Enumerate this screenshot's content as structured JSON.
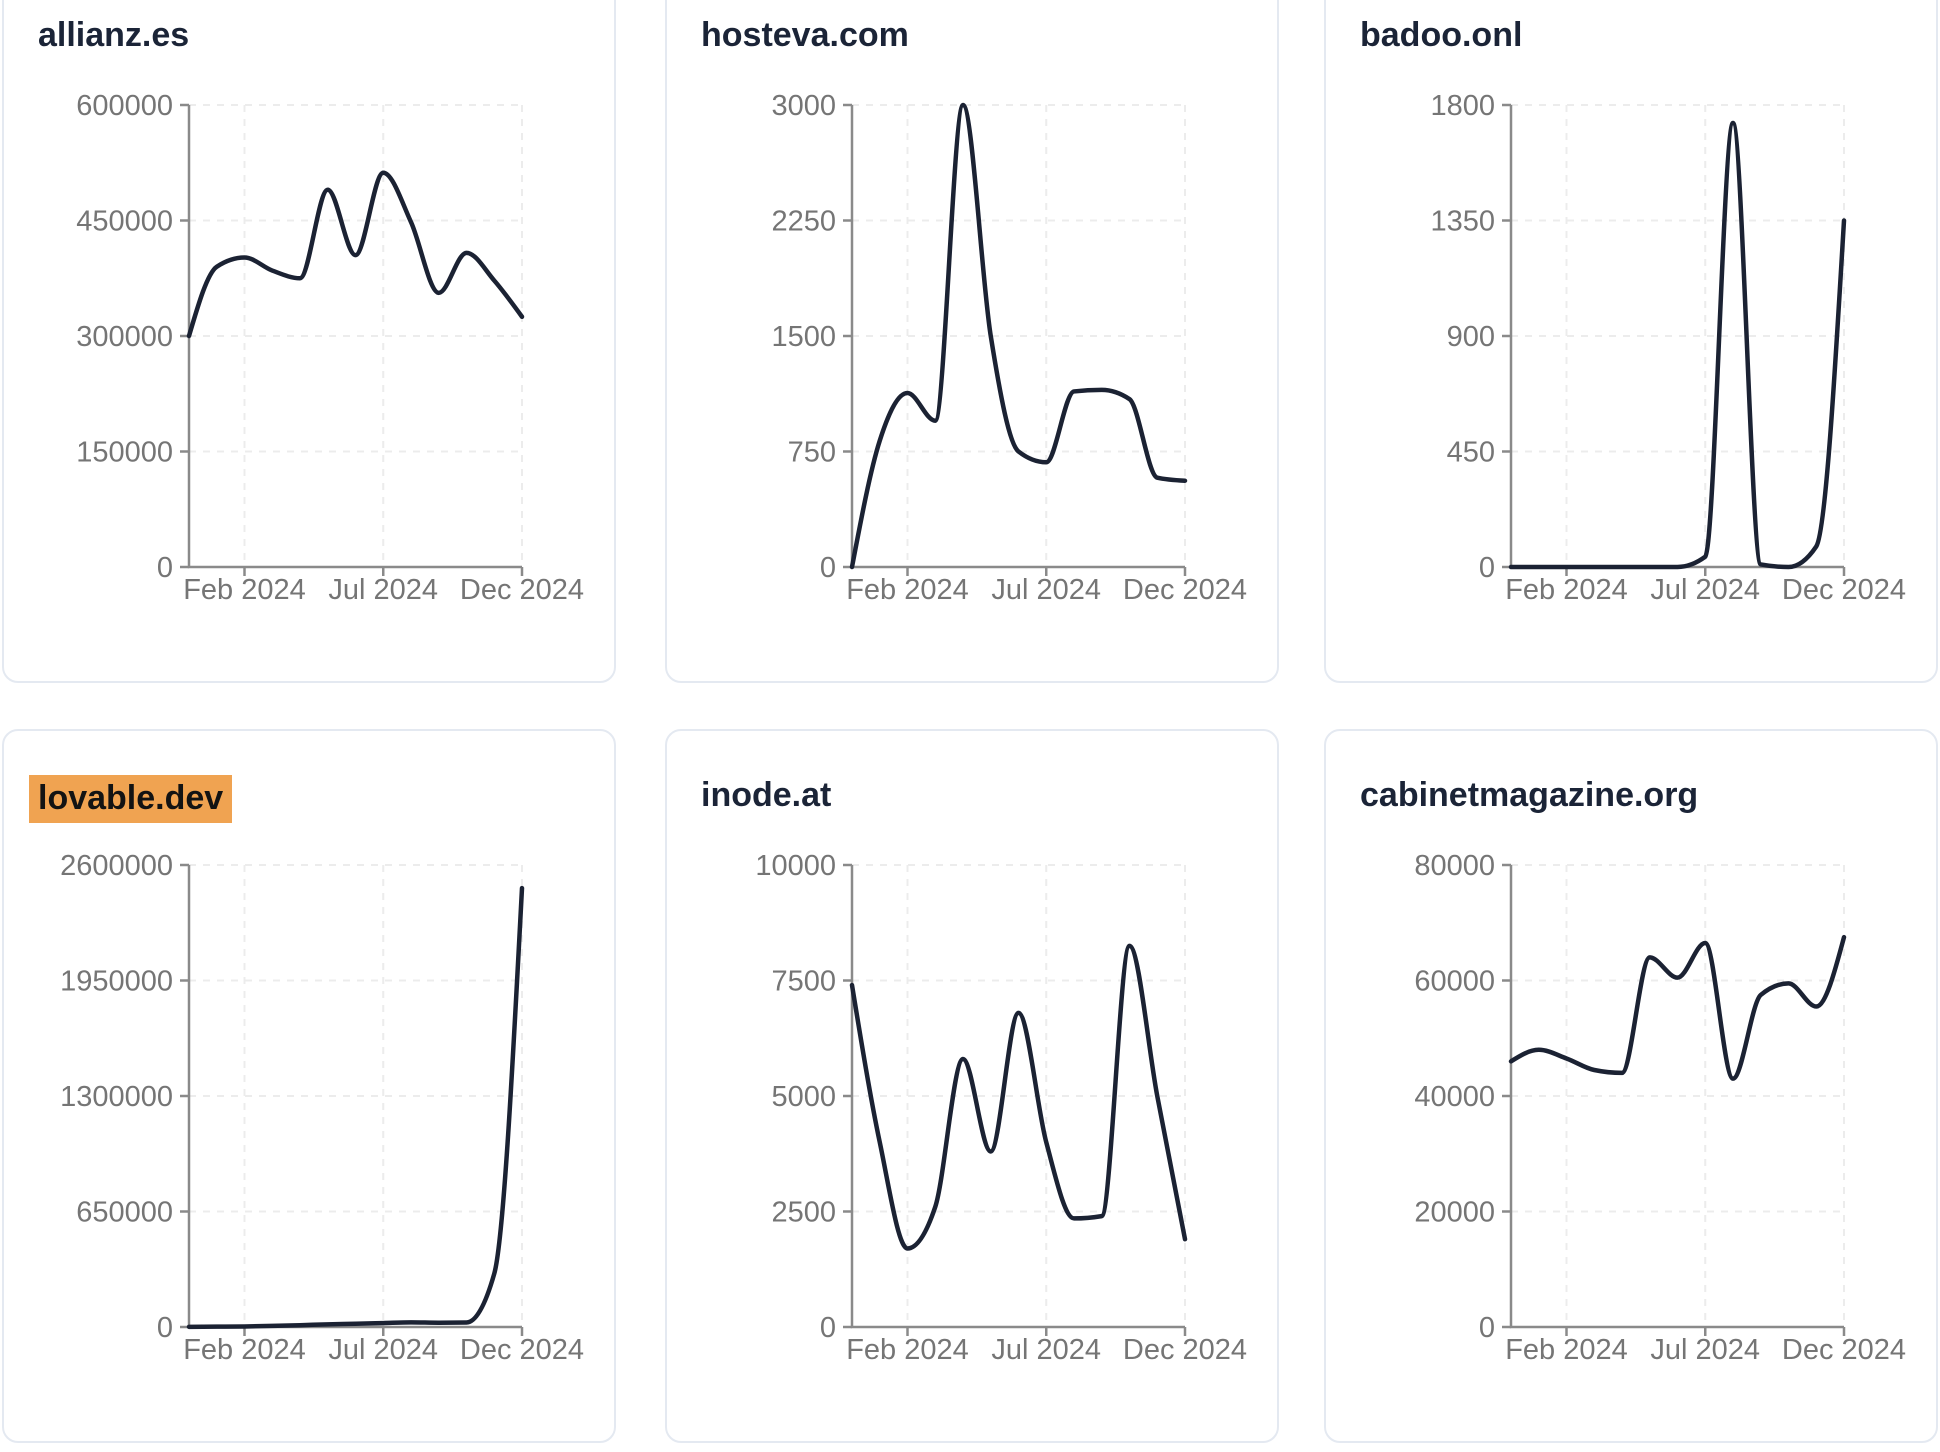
{
  "style": {
    "page_bg": "#ffffff",
    "card_bg": "#ffffff",
    "card_border_color": "#e4e9f1",
    "title_color": "#1b2437",
    "highlight_color": "#f0a351",
    "highlight_text_color": "#131313",
    "line_color": "#1b2233",
    "axis_color": "#8a8a8a",
    "grid_color": "#ececec",
    "tick_label_color": "#757575"
  },
  "chart_data": [
    {
      "type": "line",
      "title": "allianz.es",
      "title_highlighted": false,
      "x": [
        "Dec 2023",
        "Jan 2024",
        "Feb 2024",
        "Mar 2024",
        "Apr 2024",
        "May 2024",
        "Jun 2024",
        "Jul 2024",
        "Aug 2024",
        "Sep 2024",
        "Oct 2024",
        "Nov 2024",
        "Dec 2024"
      ],
      "values": [
        300000,
        390000,
        402000,
        385000,
        375000,
        490000,
        405000,
        512000,
        448000,
        356000,
        408000,
        372000,
        325000
      ],
      "ylim": [
        0,
        600000
      ],
      "y_ticks": [
        0,
        150000,
        300000,
        450000,
        600000
      ],
      "x_tick_labels": [
        "Feb 2024",
        "Jul 2024",
        "Dec 2024"
      ],
      "x_tick_month_index": [
        2,
        7,
        12
      ],
      "grid": "dashed",
      "legend": "none",
      "xlabel": "",
      "ylabel": ""
    },
    {
      "type": "line",
      "title": "hosteva.com",
      "title_highlighted": false,
      "x": [
        "Dec 2023",
        "Jan 2024",
        "Feb 2024",
        "Mar 2024",
        "Apr 2024",
        "May 2024",
        "Jun 2024",
        "Jul 2024",
        "Aug 2024",
        "Sep 2024",
        "Oct 2024",
        "Nov 2024",
        "Dec 2024"
      ],
      "values": [
        0,
        820,
        1130,
        950,
        3000,
        1500,
        750,
        680,
        1140,
        1150,
        1090,
        580,
        560
      ],
      "ylim": [
        0,
        3000
      ],
      "y_ticks": [
        0,
        750,
        1500,
        2250,
        3000
      ],
      "x_tick_labels": [
        "Feb 2024",
        "Jul 2024",
        "Dec 2024"
      ],
      "x_tick_month_index": [
        2,
        7,
        12
      ],
      "grid": "dashed",
      "legend": "none",
      "xlabel": "",
      "ylabel": ""
    },
    {
      "type": "line",
      "title": "badoo.onl",
      "title_highlighted": false,
      "x": [
        "Dec 2023",
        "Jan 2024",
        "Feb 2024",
        "Mar 2024",
        "Apr 2024",
        "May 2024",
        "Jun 2024",
        "Jul 2024",
        "Aug 2024",
        "Sep 2024",
        "Oct 2024",
        "Nov 2024",
        "Dec 2024"
      ],
      "values": [
        0,
        0,
        0,
        0,
        0,
        0,
        0,
        40,
        1730,
        10,
        0,
        80,
        1350
      ],
      "ylim": [
        0,
        1800
      ],
      "y_ticks": [
        0,
        450,
        900,
        1350,
        1800
      ],
      "x_tick_labels": [
        "Feb 2024",
        "Jul 2024",
        "Dec 2024"
      ],
      "x_tick_month_index": [
        2,
        7,
        12
      ],
      "grid": "dashed",
      "legend": "none",
      "xlabel": "",
      "ylabel": ""
    },
    {
      "type": "line",
      "title": "lovable.dev",
      "title_highlighted": true,
      "x": [
        "Dec 2023",
        "Jan 2024",
        "Feb 2024",
        "Mar 2024",
        "Apr 2024",
        "May 2024",
        "Jun 2024",
        "Jul 2024",
        "Aug 2024",
        "Sep 2024",
        "Oct 2024",
        "Nov 2024",
        "Dec 2024"
      ],
      "values": [
        1000,
        2000,
        3000,
        6000,
        10000,
        15000,
        18000,
        22000,
        26000,
        24000,
        25000,
        300000,
        2470000
      ],
      "ylim": [
        0,
        2600000
      ],
      "y_ticks": [
        0,
        650000,
        1300000,
        1950000,
        2600000
      ],
      "x_tick_labels": [
        "Feb 2024",
        "Jul 2024",
        "Dec 2024"
      ],
      "x_tick_month_index": [
        2,
        7,
        12
      ],
      "grid": "dashed",
      "legend": "none",
      "xlabel": "",
      "ylabel": ""
    },
    {
      "type": "line",
      "title": "inode.at",
      "title_highlighted": false,
      "x": [
        "Dec 2023",
        "Jan 2024",
        "Feb 2024",
        "Mar 2024",
        "Apr 2024",
        "May 2024",
        "Jun 2024",
        "Jul 2024",
        "Aug 2024",
        "Sep 2024",
        "Oct 2024",
        "Nov 2024",
        "Dec 2024"
      ],
      "values": [
        7400,
        4000,
        1700,
        2600,
        5800,
        3800,
        6800,
        4000,
        2350,
        2400,
        8250,
        5000,
        1900
      ],
      "ylim": [
        0,
        10000
      ],
      "y_ticks": [
        0,
        2500,
        5000,
        7500,
        10000
      ],
      "x_tick_labels": [
        "Feb 2024",
        "Jul 2024",
        "Dec 2024"
      ],
      "x_tick_month_index": [
        2,
        7,
        12
      ],
      "grid": "dashed",
      "legend": "none",
      "xlabel": "",
      "ylabel": ""
    },
    {
      "type": "line",
      "title": "cabinetmagazine.org",
      "title_highlighted": false,
      "x": [
        "Dec 2023",
        "Jan 2024",
        "Feb 2024",
        "Mar 2024",
        "Apr 2024",
        "May 2024",
        "Jun 2024",
        "Jul 2024",
        "Aug 2024",
        "Sep 2024",
        "Oct 2024",
        "Nov 2024",
        "Dec 2024"
      ],
      "values": [
        46000,
        48000,
        46500,
        44500,
        44000,
        64000,
        60500,
        66500,
        43000,
        57500,
        59500,
        55500,
        67500
      ],
      "ylim": [
        0,
        80000
      ],
      "y_ticks": [
        0,
        20000,
        40000,
        60000,
        80000
      ],
      "x_tick_labels": [
        "Feb 2024",
        "Jul 2024",
        "Dec 2024"
      ],
      "x_tick_month_index": [
        2,
        7,
        12
      ],
      "grid": "dashed",
      "legend": "none",
      "xlabel": "",
      "ylabel": ""
    }
  ]
}
